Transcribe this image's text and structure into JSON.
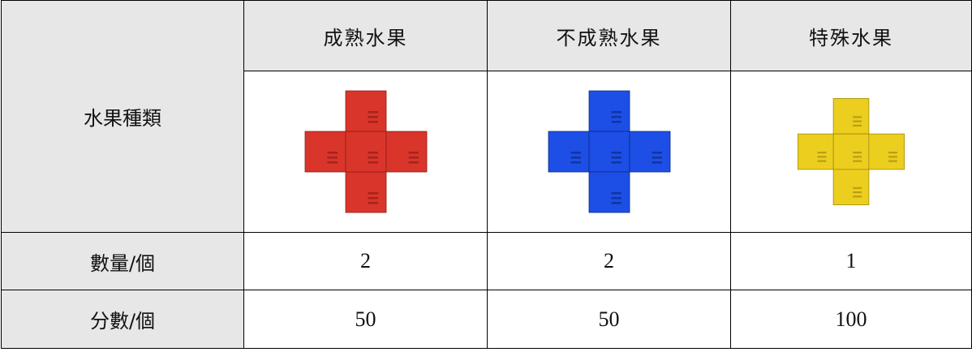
{
  "table": {
    "header": [
      "水果種類",
      "成熟水果",
      "不成熟水果",
      "特殊水果"
    ],
    "rows": [
      [
        "數量/個",
        2,
        2,
        1
      ],
      [
        "分數/個",
        50,
        50,
        100
      ]
    ]
  }
}
